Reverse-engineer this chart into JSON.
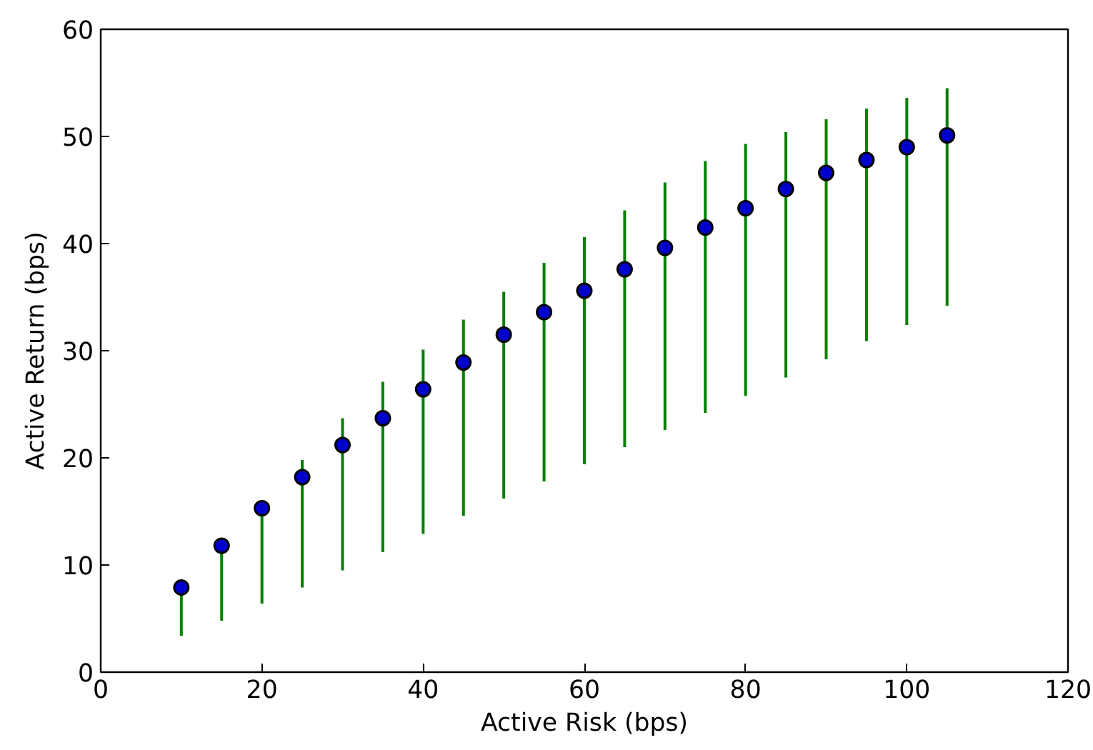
{
  "chart_data": {
    "type": "scatter",
    "xlabel": "Active Risk (bps)",
    "ylabel": "Active Return (bps)",
    "x": [
      10,
      15,
      20,
      25,
      30,
      35,
      40,
      45,
      50,
      55,
      60,
      65,
      70,
      75,
      80,
      85,
      90,
      95,
      100,
      105
    ],
    "series": [
      {
        "color": "#0000cc",
        "values": [
          7.9,
          11.8,
          15.3,
          18.2,
          21.2,
          23.7,
          26.4,
          28.9,
          31.5,
          33.6,
          35.6,
          37.6,
          39.6,
          41.5,
          43.3,
          45.1,
          46.6,
          47.8,
          49.0,
          50.1
        ],
        "errors": [
          [
            3.4,
            8.0
          ],
          [
            4.8,
            12.2
          ],
          [
            6.4,
            15.9
          ],
          [
            7.9,
            19.8
          ],
          [
            9.5,
            23.7
          ],
          [
            11.2,
            27.1
          ],
          [
            12.9,
            30.1
          ],
          [
            14.6,
            32.9
          ],
          [
            16.2,
            35.5
          ],
          [
            17.8,
            38.2
          ],
          [
            19.4,
            40.6
          ],
          [
            21.0,
            43.1
          ],
          [
            22.6,
            45.7
          ],
          [
            24.2,
            47.7
          ],
          [
            25.8,
            49.3
          ],
          [
            27.5,
            50.4
          ],
          [
            29.2,
            51.6
          ],
          [
            30.9,
            52.6
          ],
          [
            32.4,
            53.6
          ],
          [
            34.2,
            54.5
          ]
        ]
      }
    ],
    "marker": "circle",
    "xlim": [
      0,
      120
    ],
    "ylim": [
      0,
      60
    ],
    "xticks": [
      0,
      20,
      40,
      60,
      80,
      100,
      120
    ],
    "yticks": [
      0,
      10,
      20,
      30,
      40,
      50,
      60
    ],
    "grid": false
  }
}
